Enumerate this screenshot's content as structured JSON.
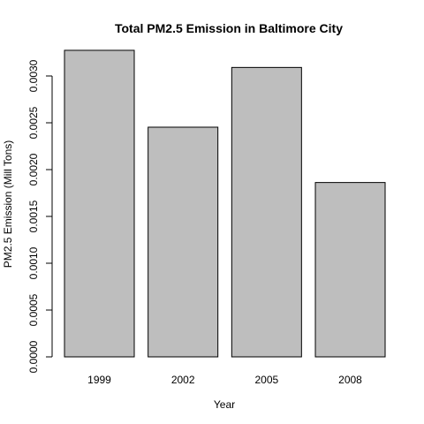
{
  "chart_data": {
    "type": "bar",
    "title": "Total PM2.5 Emission in Baltimore City",
    "xlabel": "Year",
    "ylabel": "PM2.5 Emission (Mill Tons)",
    "categories": [
      "1999",
      "2002",
      "2005",
      "2008"
    ],
    "values": [
      0.003274,
      0.002453,
      0.003091,
      0.001862
    ],
    "ylim": [
      0,
      0.0033
    ],
    "yticks": [
      0,
      0.0005,
      0.001,
      0.0015,
      0.002,
      0.0025,
      0.003
    ],
    "ytick_labels": [
      "0.0000",
      "0.0005",
      "0.0010",
      "0.0015",
      "0.0020",
      "0.0025",
      "0.0030"
    ],
    "bar_color": "#bebebe",
    "bar_border_color": "#000000",
    "grid": false,
    "legend": "none"
  }
}
